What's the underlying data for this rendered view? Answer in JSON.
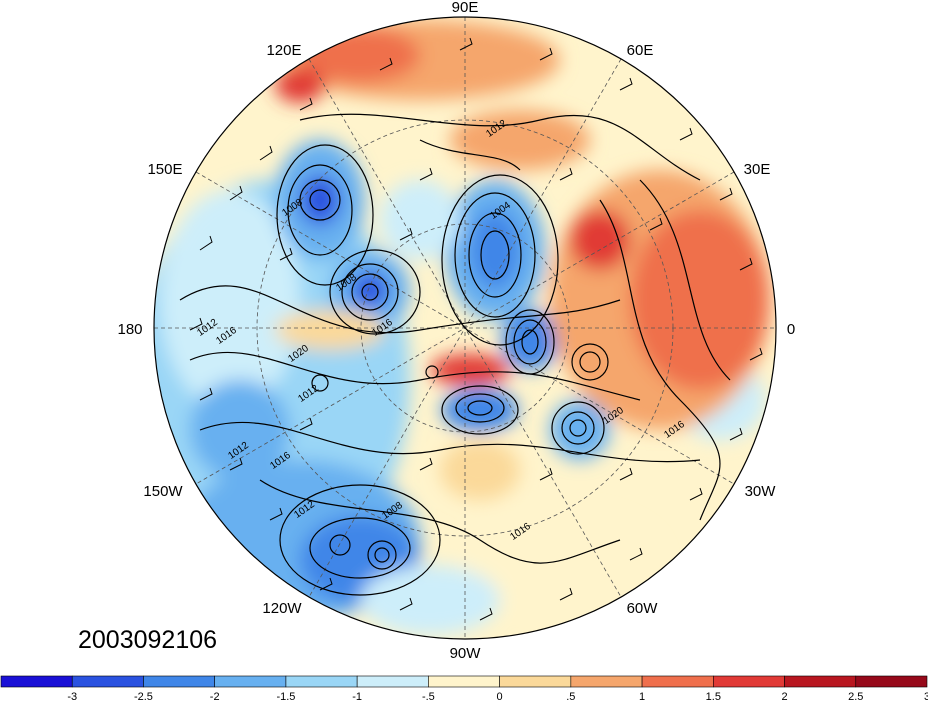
{
  "map": {
    "projection": "north-polar-stereographic",
    "field_units": "anomaly",
    "longitude_labels": [
      {
        "text": "90E"
      },
      {
        "text": "60E"
      },
      {
        "text": "30E"
      },
      {
        "text": "0"
      },
      {
        "text": "30W"
      },
      {
        "text": "60W"
      },
      {
        "text": "90W"
      },
      {
        "text": "120W"
      },
      {
        "text": "150W"
      },
      {
        "text": "180"
      },
      {
        "text": "150E"
      },
      {
        "text": "120E"
      }
    ],
    "contour_labels": [
      {
        "text": "1012"
      },
      {
        "text": "1008"
      },
      {
        "text": "1004"
      },
      {
        "text": "1008"
      },
      {
        "text": "1016"
      },
      {
        "text": "1012"
      },
      {
        "text": "1016"
      },
      {
        "text": "1020"
      },
      {
        "text": "1012"
      },
      {
        "text": "1020"
      },
      {
        "text": "1016"
      },
      {
        "text": "1012"
      },
      {
        "text": "1016"
      },
      {
        "text": "1012"
      },
      {
        "text": "1008"
      },
      {
        "text": "1016"
      }
    ],
    "timestamp": "2003092106"
  },
  "colorbar": {
    "colors": [
      "#1a10d6",
      "#2a52e0",
      "#3f86e8",
      "#67b0f0",
      "#9ad6f6",
      "#cdeefa",
      "#fff4cc",
      "#fbd99a",
      "#f5a66c",
      "#ef6f4c",
      "#e13a36",
      "#b8161f",
      "#96091a"
    ],
    "tick_labels": [
      "-3",
      "-2.5",
      "-2",
      "-1.5",
      "-1",
      "-.5",
      "0",
      ".5",
      "1",
      "1.5",
      "2",
      "2.5",
      "3"
    ]
  }
}
